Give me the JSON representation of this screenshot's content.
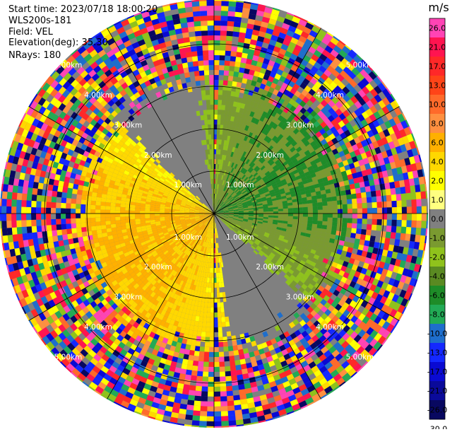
{
  "header": {
    "start_time": "Start time: 2023/07/18 18:00:20",
    "instrument": "WLS200s-181",
    "field": "Field: VEL",
    "elevation": "Elevation(deg): 35.30",
    "nrays": "NRays: 180"
  },
  "ring_labels": [
    "1.00km",
    "2.00km",
    "3.00km",
    "4.00km",
    "5.00km"
  ],
  "colorbar": {
    "unit": "m/s",
    "ticks": [
      "26.0",
      "21.0",
      "17.0",
      "13.0",
      "10.0",
      "8.0",
      "6.0",
      "4.0",
      "2.0",
      "1.0",
      "0.0",
      "-1.0",
      "-2.0",
      "-4.0",
      "-6.0",
      "-8.0",
      "-10.0",
      "-13.0",
      "-17.0",
      "-21.0",
      "-26.0",
      "-30.0"
    ],
    "colors": [
      "#ff44b4",
      "#ff1450",
      "#ff2828",
      "#ff4418",
      "#ff6a2a",
      "#ff9040",
      "#ffb000",
      "#ffd800",
      "#ffff00",
      "#ffff80",
      "#808080",
      "#7a9a30",
      "#8fc21c",
      "#5a8a22",
      "#1e8c28",
      "#22aa55",
      "#1e6ecc",
      "#1428ff",
      "#0a0ad2",
      "#0a0a9a",
      "#080860"
    ]
  },
  "colors": {
    "background": "#ffffff",
    "grid": "#000000"
  }
}
